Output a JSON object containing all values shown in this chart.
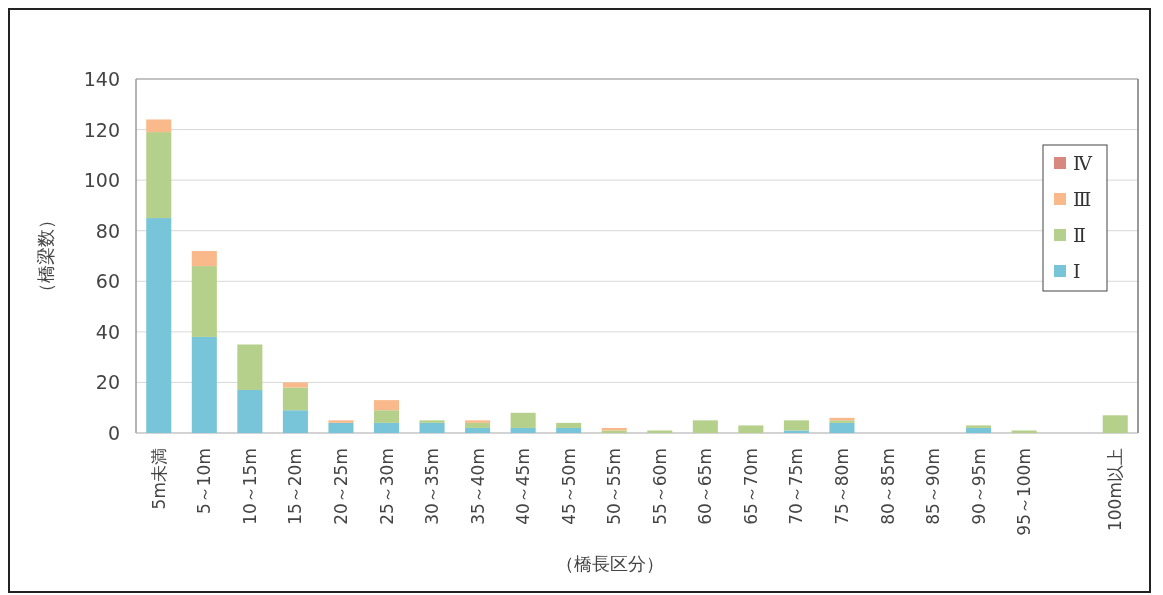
{
  "chart_data": {
    "type": "bar",
    "stacked": true,
    "xlabel": "（橋長区分）",
    "ylabel": "（橋梁数）",
    "categories": [
      "5m未満",
      "5～10m",
      "10～15m",
      "15～20m",
      "20～25m",
      "25～30m",
      "30～35m",
      "35～40m",
      "40～45m",
      "45～50m",
      "50～55m",
      "55～60m",
      "60～65m",
      "65～70m",
      "70～75m",
      "75～80m",
      "80～85m",
      "85～90m",
      "90～95m",
      "95～100m",
      null,
      "100m以上"
    ],
    "series": [
      {
        "name": "Ⅰ",
        "color": "#78c4d8",
        "values": [
          85,
          38,
          17,
          9,
          4,
          4,
          4,
          2,
          2,
          2,
          0,
          0,
          0,
          0,
          1,
          4,
          0,
          0,
          2,
          0,
          0,
          0
        ]
      },
      {
        "name": "Ⅱ",
        "color": "#b5d08a",
        "values": [
          34,
          28,
          18,
          9,
          0,
          5,
          1,
          2,
          6,
          2,
          1,
          1,
          5,
          3,
          4,
          1,
          0,
          0,
          1,
          1,
          0,
          7
        ]
      },
      {
        "name": "Ⅲ",
        "color": "#f9b98a",
        "values": [
          5,
          6,
          0,
          2,
          1,
          4,
          0,
          1,
          0,
          0,
          1,
          0,
          0,
          0,
          0,
          1,
          0,
          0,
          0,
          0,
          0,
          0
        ]
      },
      {
        "name": "Ⅳ",
        "color": "#d98880",
        "values": [
          0,
          0,
          0,
          0,
          0,
          0,
          0,
          0,
          0,
          0,
          0,
          0,
          0,
          0,
          0,
          0,
          0,
          0,
          0,
          0,
          0,
          0
        ]
      }
    ],
    "ylim": [
      0,
      140
    ],
    "yticks": [
      0,
      20,
      40,
      60,
      80,
      100,
      120,
      140
    ],
    "grid": "y",
    "legend": "right"
  }
}
